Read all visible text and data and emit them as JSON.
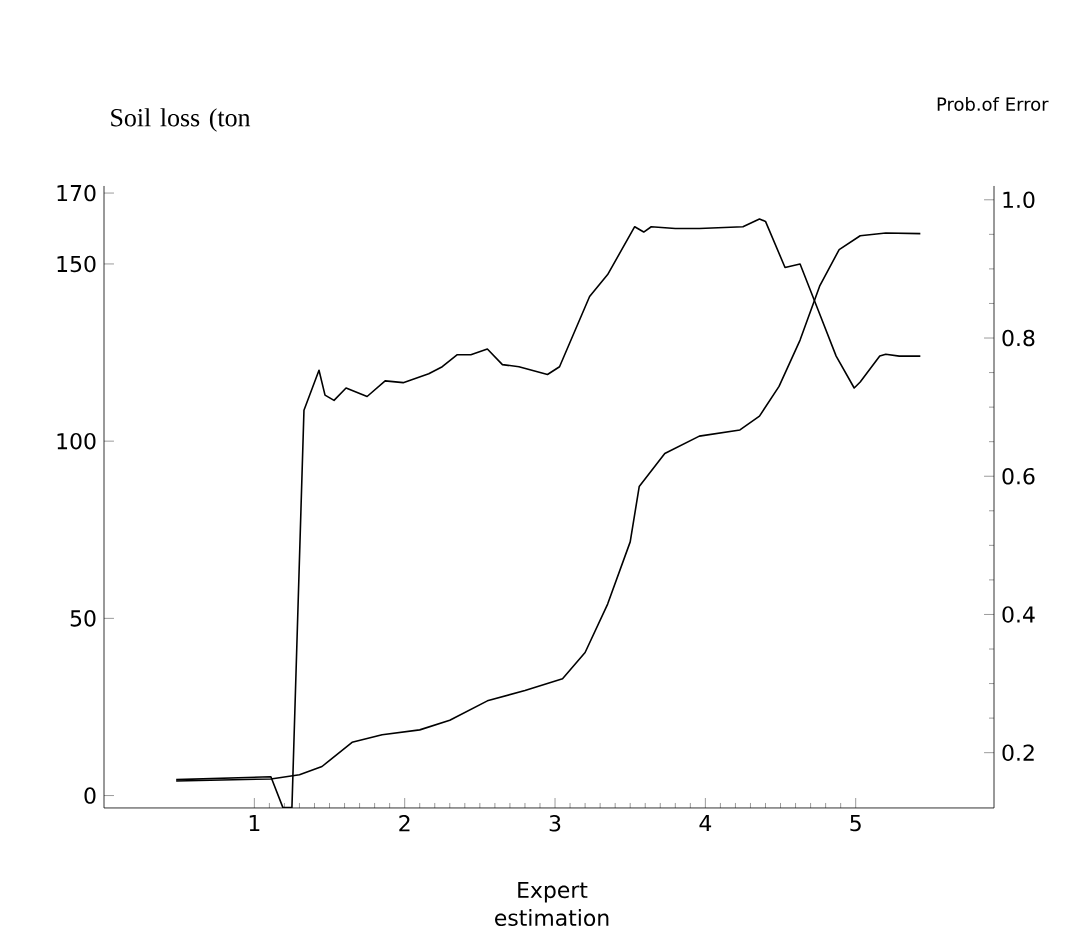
{
  "chart_data": {
    "type": "line",
    "xlabel": "Expert estimation",
    "ylabel": "Soil loss (ton",
    "y2label": "Prob.of Error",
    "xlim": [
      0,
      5.92
    ],
    "xticks": [
      1,
      2,
      3,
      4,
      5
    ],
    "ylim": [
      -3.5,
      172
    ],
    "yticks": [
      0,
      50,
      100,
      150,
      170
    ],
    "y2lim": [
      0.12,
      1.02
    ],
    "y2ticks": [
      0.2,
      0.4,
      0.6,
      {
        "value": 0.8,
        "label": "0.8"
      },
      {
        "value": 1.0,
        "label": "1.0"
      }
    ],
    "grid": false,
    "legend": false,
    "marker": "none",
    "line_style": "solid",
    "series": [
      {
        "color": "#000000",
        "axis": "y",
        "x": [
          0.48,
          1.11,
          1.19,
          1.25,
          1.33,
          1.43,
          1.47,
          1.53,
          1.61,
          1.75,
          1.87,
          1.99,
          2.16,
          2.25,
          2.35,
          2.44,
          2.55,
          2.65,
          2.76,
          2.95,
          3.03,
          3.23,
          3.35,
          3.53,
          3.59,
          3.64,
          3.8,
          3.96,
          4.25,
          4.36,
          4.4,
          4.53,
          4.63,
          4.75,
          4.87,
          4.99,
          5.03,
          5.16,
          5.2,
          5.29,
          5.43
        ],
        "values": [
          4.5,
          5.3,
          -3.4,
          -3.4,
          108.7,
          120,
          113,
          111.5,
          115,
          112.6,
          117,
          116.5,
          119,
          121,
          124.4,
          124.4,
          126,
          121.6,
          121,
          118.8,
          121,
          140.8,
          147,
          160.5,
          159,
          160.5,
          160,
          160,
          160.5,
          162.7,
          162,
          149,
          150,
          137,
          124,
          115,
          116.7,
          124,
          124.5,
          124,
          124
        ]
      },
      {
        "color": "#000000",
        "axis": "y2",
        "x": [
          0.48,
          1.11,
          1.3,
          1.45,
          1.65,
          1.85,
          2.1,
          2.3,
          2.55,
          2.8,
          3.05,
          3.2,
          3.35,
          3.5,
          3.56,
          3.73,
          3.96,
          4.23,
          4.36,
          4.49,
          4.63,
          4.76,
          4.89,
          5.03,
          5.2,
          5.43
        ],
        "values": [
          0.159,
          0.162,
          0.168,
          0.18,
          0.215,
          0.226,
          0.233,
          0.247,
          0.275,
          0.29,
          0.307,
          0.345,
          0.415,
          0.505,
          0.585,
          0.633,
          0.658,
          0.667,
          0.687,
          0.73,
          0.797,
          0.875,
          0.928,
          0.948,
          0.952,
          0.951
        ]
      }
    ]
  }
}
